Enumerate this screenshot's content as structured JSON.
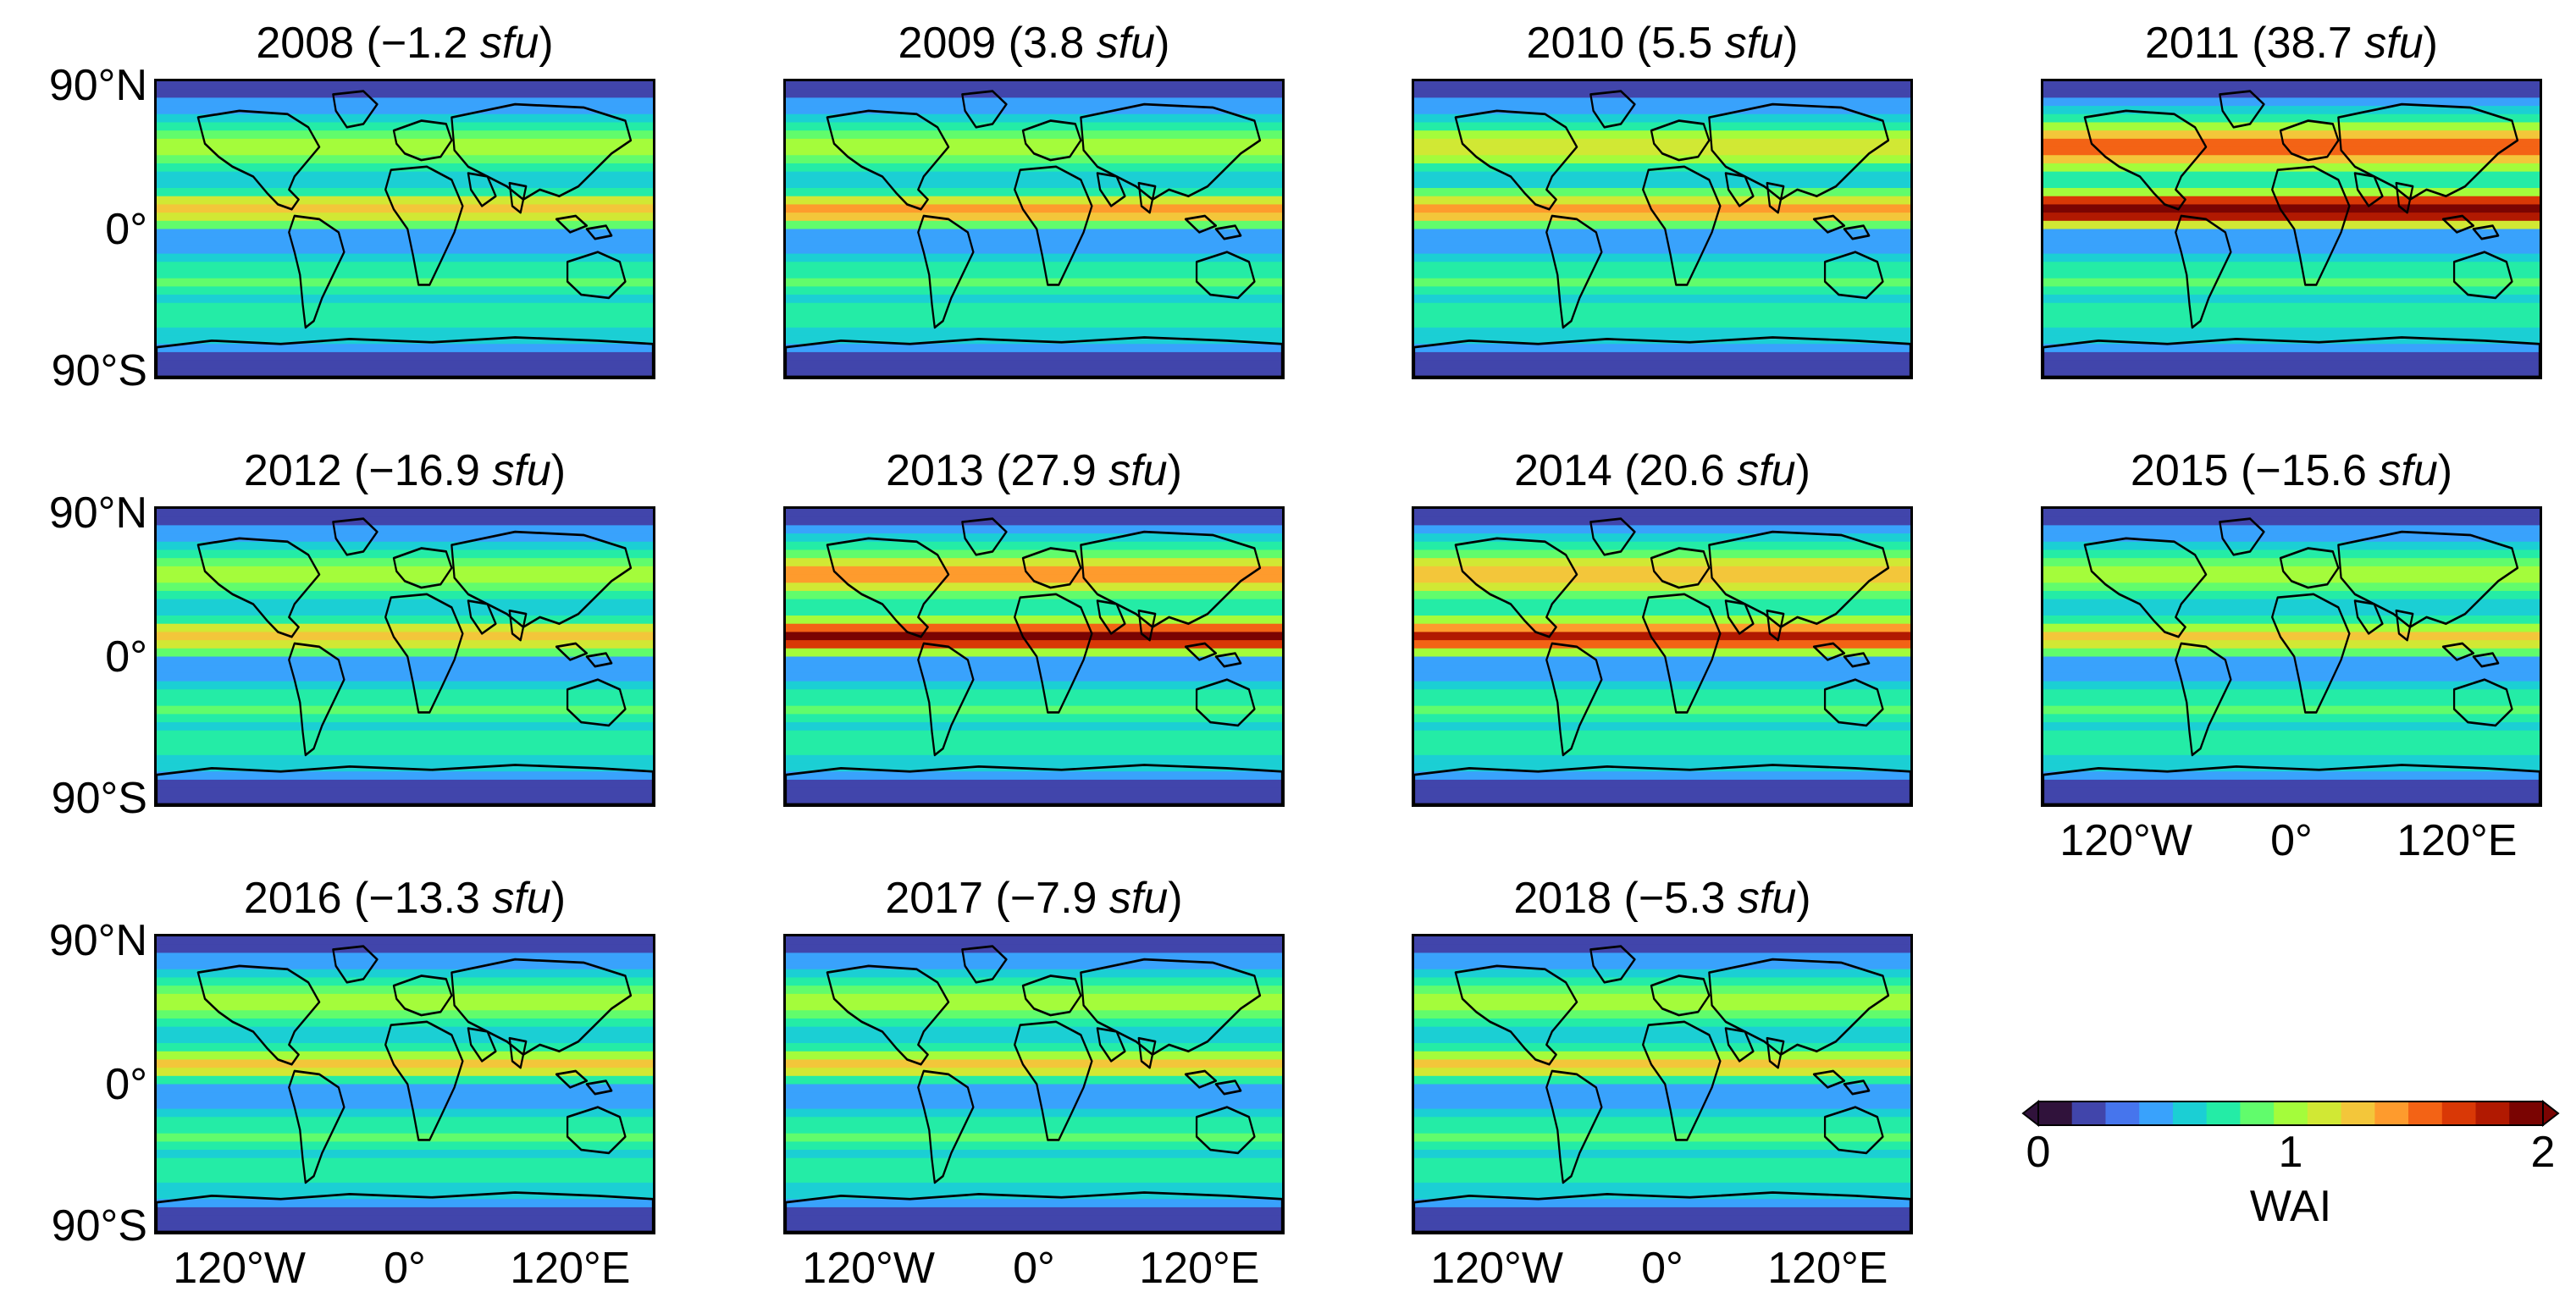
{
  "figure": {
    "panels": [
      {
        "year": "2008",
        "value": "−1.2",
        "unit": "sfu",
        "wai_north": 1.0
      },
      {
        "year": "2009",
        "value": "3.8",
        "unit": "sfu",
        "wai_north": 1.05
      },
      {
        "year": "2010",
        "value": "5.5",
        "unit": "sfu",
        "wai_north": 1.08
      },
      {
        "year": "2011",
        "value": "38.7",
        "unit": "sfu",
        "wai_north": 1.9
      },
      {
        "year": "2012",
        "value": "−16.9",
        "unit": "sfu",
        "wai_north": 0.95
      },
      {
        "year": "2013",
        "value": "27.9",
        "unit": "sfu",
        "wai_north": 1.65
      },
      {
        "year": "2014",
        "value": "20.6",
        "unit": "sfu",
        "wai_north": 1.55
      },
      {
        "year": "2015",
        "value": "−15.6",
        "unit": "sfu",
        "wai_north": 0.92
      },
      {
        "year": "2016",
        "value": "−13.3",
        "unit": "sfu",
        "wai_north": 0.9
      },
      {
        "year": "2017",
        "value": "−7.9",
        "unit": "sfu",
        "wai_north": 0.9
      },
      {
        "year": "2018",
        "value": "−5.3",
        "unit": "sfu",
        "wai_north": 0.9
      }
    ],
    "lat_labels": {
      "north": "90°N",
      "equator": "0°",
      "south": "90°S"
    },
    "lon_labels": {
      "west": "120°W",
      "center": "0°",
      "east": "120°E"
    },
    "colorbar": {
      "title": "WAI",
      "min_label": "0",
      "mid_label": "1",
      "max_label": "2",
      "range": [
        0,
        2
      ],
      "colormap": [
        "#30123b",
        "#4145ab",
        "#4675ed",
        "#39a2fc",
        "#1bcfd4",
        "#24eca6",
        "#61fc6c",
        "#a4fc3b",
        "#d1e834",
        "#f3c63a",
        "#fe9b2d",
        "#f36315",
        "#d93806",
        "#b11901",
        "#7a0402"
      ]
    }
  }
}
